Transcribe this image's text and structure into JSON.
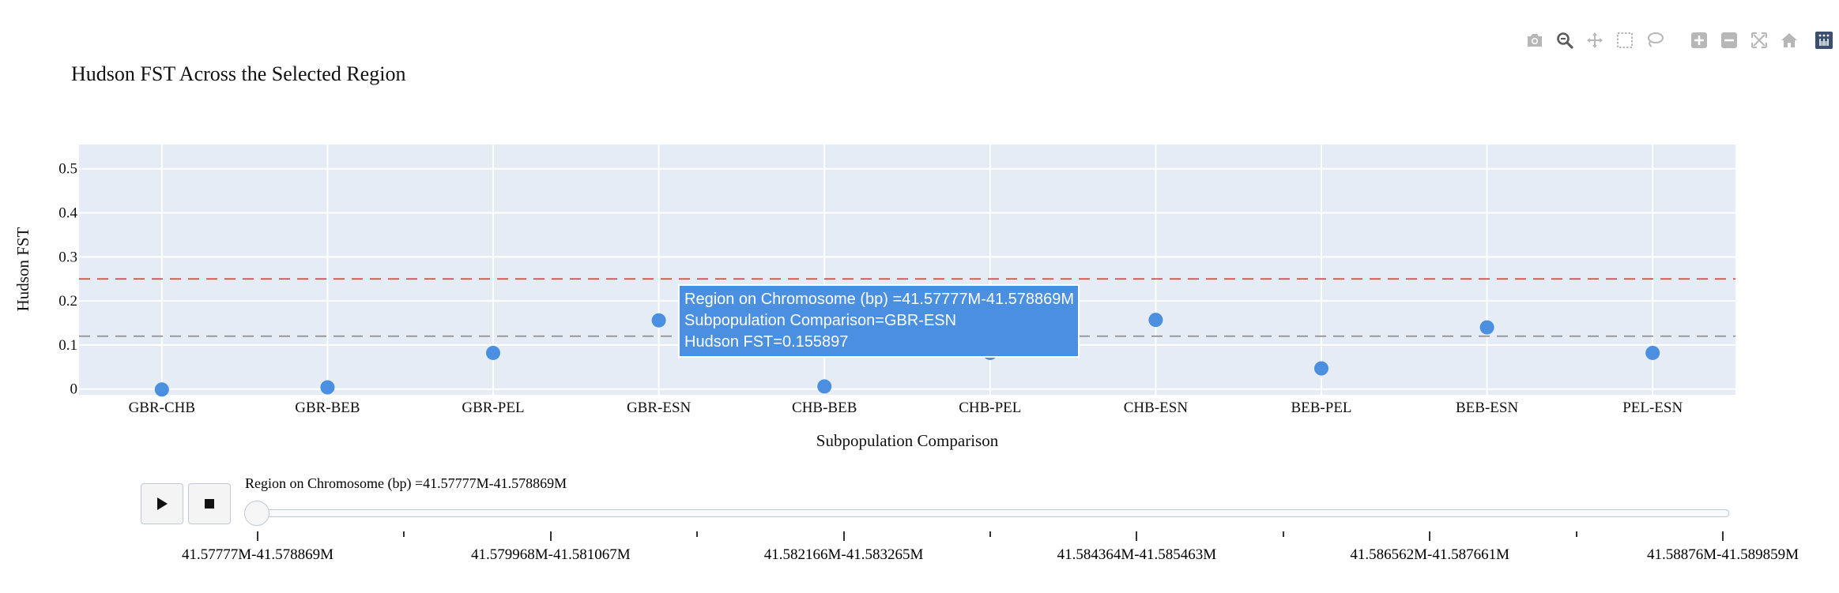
{
  "chart_data": {
    "type": "scatter",
    "title": "Hudson FST Across the Selected Region",
    "xlabel": "Subpopulation Comparison",
    "ylabel": "Hudson FST",
    "categories": [
      "GBR-CHB",
      "GBR-BEB",
      "GBR-PEL",
      "GBR-ESN",
      "CHB-BEB",
      "CHB-PEL",
      "CHB-ESN",
      "BEB-PEL",
      "BEB-ESN",
      "PEL-ESN"
    ],
    "values": [
      -0.001,
      0.004,
      0.082,
      0.155897,
      0.006,
      0.082,
      0.157,
      0.047,
      0.14,
      0.082
    ],
    "yticks": [
      "0",
      "0.1",
      "0.2",
      "0.3",
      "0.4",
      "0.5"
    ],
    "ylim": [
      -0.013,
      0.555
    ],
    "reference_lines": [
      {
        "y": 0.25,
        "color": "#e8413c"
      },
      {
        "y": 0.12,
        "color": "#8f8f8f"
      }
    ],
    "marker_color": "#4a8fe0",
    "plot_bg": "#e5ecf6",
    "grid": true
  },
  "tooltip": {
    "line1": "Region on Chromosome (bp) =41.57777M-41.578869M",
    "line2": "Subpopulation Comparison=GBR-ESN",
    "line3": "Hudson FST=0.155897"
  },
  "slider": {
    "current_label": "Region on Chromosome (bp) =41.57777M-41.578869M",
    "steps": [
      "41.57777M-41.578869M",
      "41.579968M-41.581067M",
      "41.582166M-41.583265M",
      "41.584364M-41.585463M",
      "41.586562M-41.587661M",
      "41.58876M-41.589859M"
    ],
    "play_icon": "play-icon",
    "stop_icon": "stop-icon"
  },
  "modebar": {
    "icons": [
      "camera-icon",
      "zoom-icon",
      "pan-icon",
      "box-select-icon",
      "lasso-icon",
      "zoom-in-icon",
      "zoom-out-icon",
      "autoscale-icon",
      "home-icon",
      "plotly-logo-icon"
    ]
  }
}
